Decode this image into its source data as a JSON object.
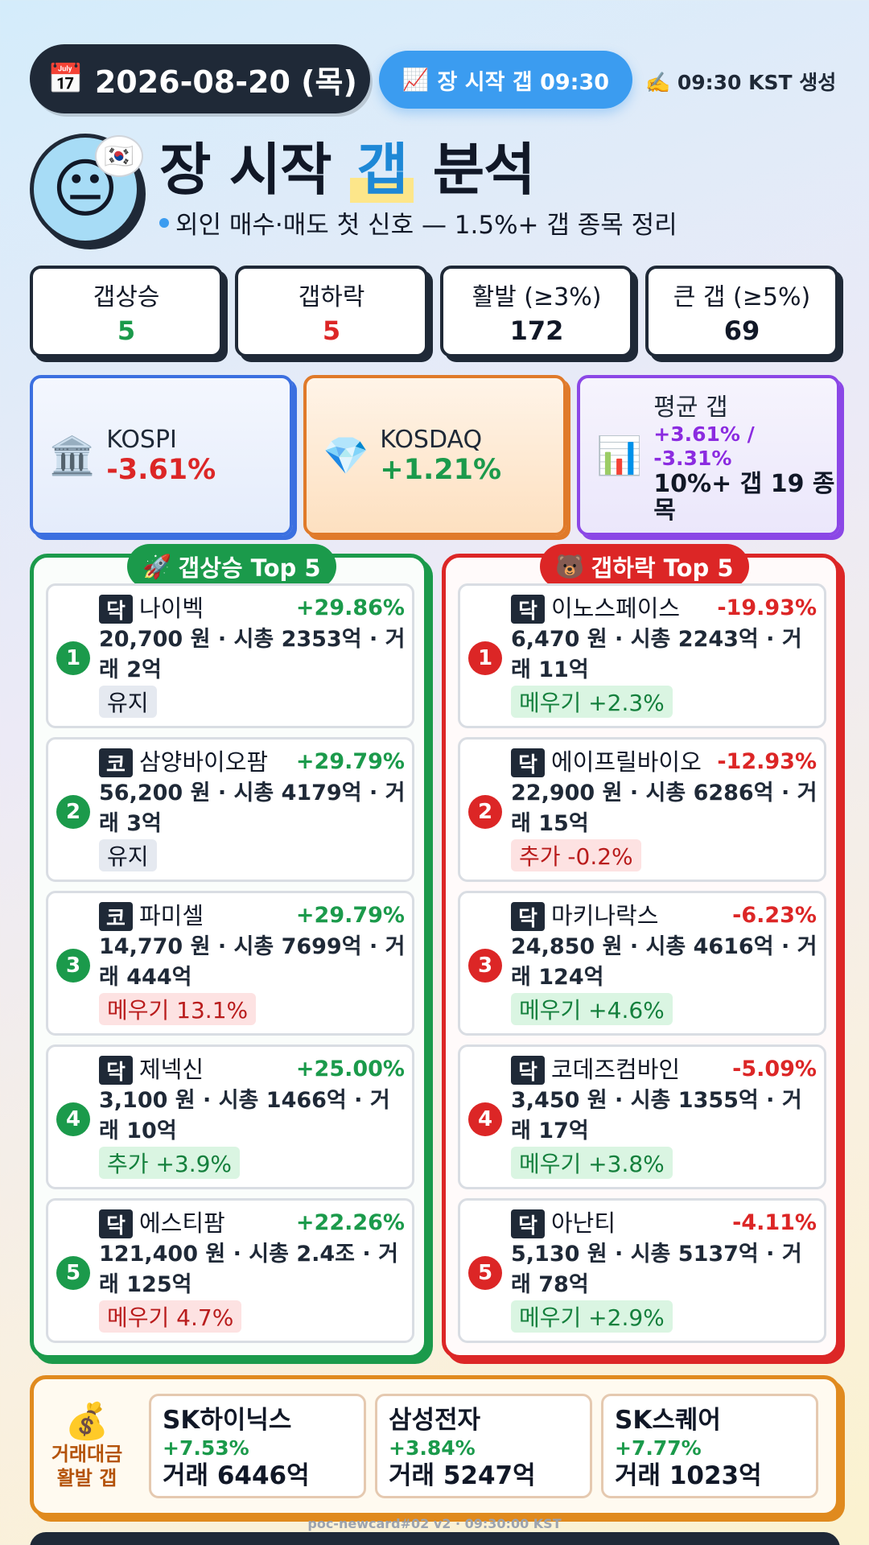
{
  "header": {
    "date_icon": "📅",
    "date": "2026-08-20 (목)",
    "open_icon": "📈",
    "open_label": "장 시작 갭 09:30",
    "generated": "✍️ 09:30 KST 생성",
    "avatar_icon": "😐",
    "flag_icon": "🇰🇷",
    "title_pre": "장 시작",
    "title_hl": "갭",
    "title_post": "분석",
    "subtitle": "외인 매수·매도 첫 신호 — 1.5%+ 갭 종목 정리"
  },
  "stats": [
    {
      "label": "갭상승",
      "value": "5",
      "color": "#1b9a4b"
    },
    {
      "label": "갭하락",
      "value": "5",
      "color": "#dc2626"
    },
    {
      "label": "활발 (≥3%)",
      "value": "172",
      "color": "#111827"
    },
    {
      "label": "큰 갭 (≥5%)",
      "value": "69",
      "color": "#111827"
    }
  ],
  "indices": {
    "kospi": {
      "icon": "🏛️",
      "name": "KOSPI",
      "change": "-3.61%",
      "color": "#dc2626"
    },
    "kosdaq": {
      "icon": "💎",
      "name": "KOSDAQ",
      "change": "+1.21%",
      "color": "#1b9a4b"
    },
    "avg": {
      "icon": "📊",
      "name": "평균 갭",
      "up": "+3.61% /",
      "down": "-3.31%",
      "big_gap": "10%+ 갭 19 종목"
    }
  },
  "gap_up": {
    "title_icon": "🚀",
    "title": "갭상승 Top 5",
    "items": [
      {
        "rank": "1",
        "market": "닥",
        "name": "나이벡",
        "change": "+29.86%",
        "detail": "20,700 원 · 시총 2353억 · 거래 2억",
        "tag": "유지",
        "tag_style": "neutral"
      },
      {
        "rank": "2",
        "market": "코",
        "name": "삼양바이오팜",
        "change": "+29.79%",
        "detail": "56,200 원 · 시총 4179억 · 거래 3억",
        "tag": "유지",
        "tag_style": "neutral"
      },
      {
        "rank": "3",
        "market": "코",
        "name": "파미셀",
        "change": "+29.79%",
        "detail": "14,770 원 · 시총 7699억 · 거래 444억",
        "tag": "메우기 13.1%",
        "tag_style": "red"
      },
      {
        "rank": "4",
        "market": "닥",
        "name": "제넥신",
        "change": "+25.00%",
        "detail": "3,100 원 · 시총 1466억 · 거래 10억",
        "tag": "추가 +3.9%",
        "tag_style": "green"
      },
      {
        "rank": "5",
        "market": "닥",
        "name": "에스티팜",
        "change": "+22.26%",
        "detail": "121,400 원 · 시총 2.4조 · 거래 125억",
        "tag": "메우기 4.7%",
        "tag_style": "red"
      }
    ]
  },
  "gap_down": {
    "title_icon": "🐻",
    "title": "갭하락 Top 5",
    "items": [
      {
        "rank": "1",
        "market": "닥",
        "name": "이노스페이스",
        "change": "-19.93%",
        "detail": "6,470 원 · 시총 2243억 · 거래 11억",
        "tag": "메우기 +2.3%",
        "tag_style": "green"
      },
      {
        "rank": "2",
        "market": "닥",
        "name": "에이프릴바이오",
        "change": "-12.93%",
        "detail": "22,900 원 · 시총 6286억 · 거래 15억",
        "tag": "추가 -0.2%",
        "tag_style": "red"
      },
      {
        "rank": "3",
        "market": "닥",
        "name": "마키나락스",
        "change": "-6.23%",
        "detail": "24,850 원 · 시총 4616억 · 거래 124억",
        "tag": "메우기 +4.6%",
        "tag_style": "green"
      },
      {
        "rank": "4",
        "market": "닥",
        "name": "코데즈컴바인",
        "change": "-5.09%",
        "detail": "3,450 원 · 시총 1355억 · 거래 17억",
        "tag": "메우기 +3.8%",
        "tag_style": "green"
      },
      {
        "rank": "5",
        "market": "닥",
        "name": "아난티",
        "change": "-4.11%",
        "detail": "5,130 원 · 시총 5137억 · 거래 78억",
        "tag": "메우기 +2.9%",
        "tag_style": "green"
      }
    ]
  },
  "hot_volume": {
    "icon": "💰",
    "label": "거래대금 활발 갭",
    "items": [
      {
        "name": "SK하이닉스",
        "change": "+7.53%",
        "volume": "거래 6446억"
      },
      {
        "name": "삼성전자",
        "change": "+3.84%",
        "volume": "거래 5247억"
      },
      {
        "name": "SK스퀘어",
        "change": "+7.77%",
        "volume": "거래 1023억"
      }
    ]
  },
  "footer": {
    "note": "poc-newcard#02 v2 · 09:30:00 KST"
  }
}
